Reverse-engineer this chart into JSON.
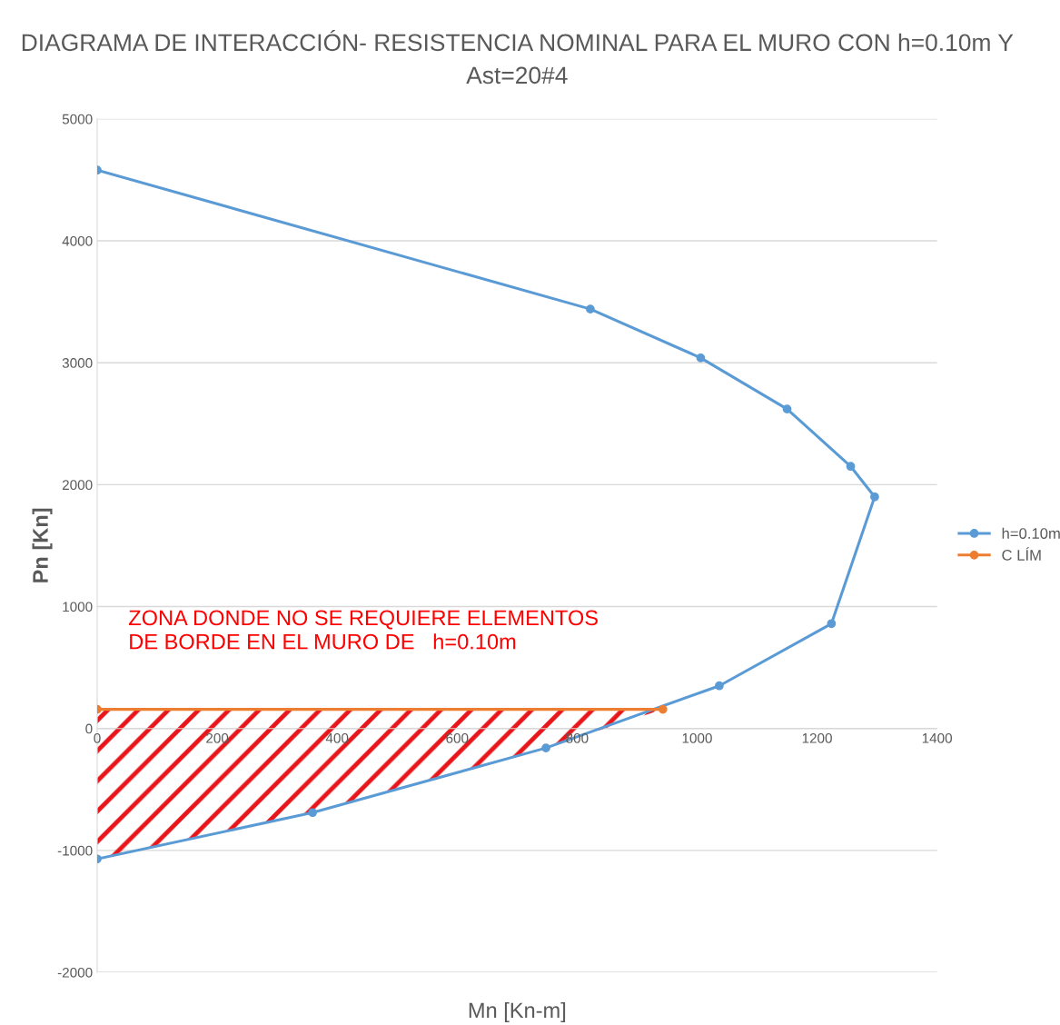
{
  "chart_data": {
    "type": "line",
    "title": "DIAGRAMA DE INTERACCIÓN- RESISTENCIA NOMINAL PARA EL MURO CON h=0.10m Y\nAst=20#4",
    "xlabel": "Mn [Kn-m]",
    "ylabel": "Pn [Kn]",
    "series": [
      {
        "name": "h=0.10m",
        "color": "#5b9bd5",
        "x": [
          0,
          822,
          1006,
          1150,
          1256,
          1296,
          1224,
          1037,
          748,
          359,
          0
        ],
        "values": [
          4580,
          3440,
          3040,
          2620,
          2150,
          1900,
          860,
          350,
          -160,
          -690,
          -1070
        ]
      },
      {
        "name": "C LÍM",
        "color": "#ed7d31",
        "x": [
          0,
          943
        ],
        "values": [
          157,
          157
        ]
      }
    ],
    "annotations": [
      "ZONA DONDE NO SE REQUIERE ELEMENTOS\nDE BORDE EN EL MURO DE   h=0.10m"
    ],
    "xlim": [
      0,
      1400
    ],
    "xticks": [
      0,
      200,
      400,
      600,
      800,
      1000,
      1200,
      1400
    ],
    "ylim": [
      -2000,
      5000
    ],
    "yticks": [
      -2000,
      -1000,
      0,
      1000,
      2000,
      3000,
      4000,
      5000
    ],
    "grid": "y",
    "legend": "right",
    "marker": "circle",
    "line_style": "solid"
  }
}
